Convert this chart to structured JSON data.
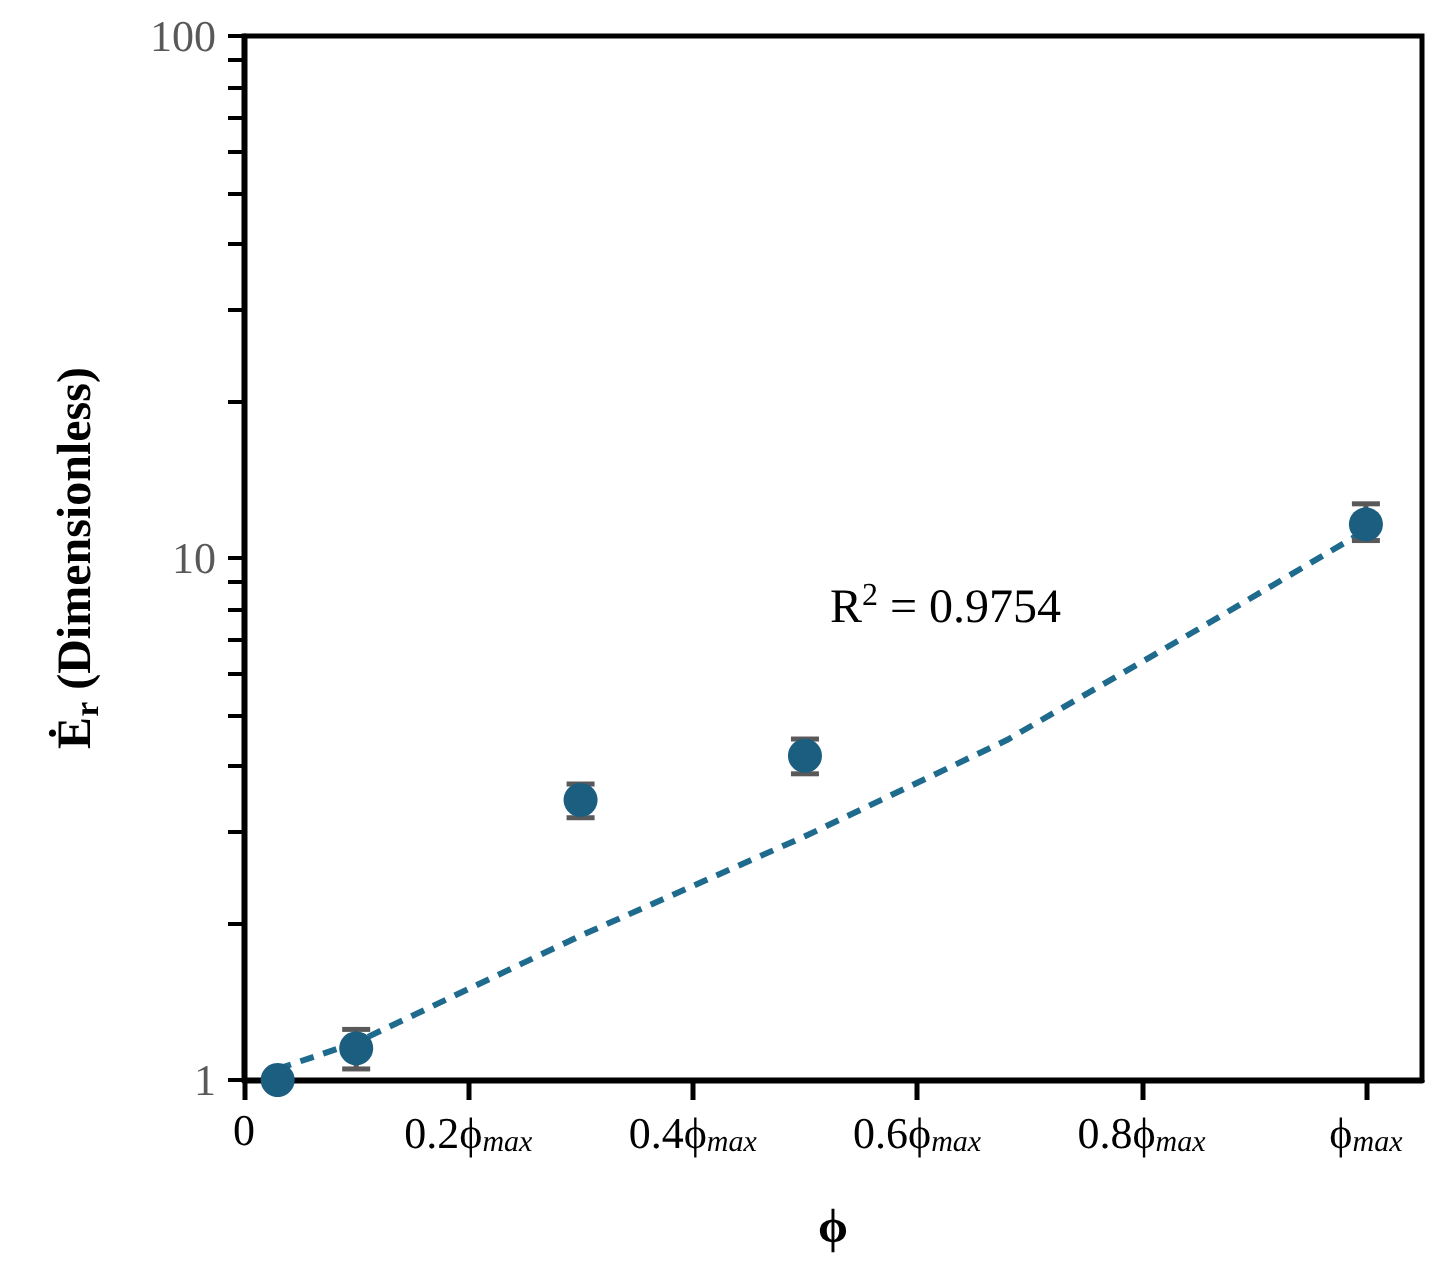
{
  "chart_data": {
    "type": "scatter",
    "xlabel": "ϕ",
    "ylabel": "Ė$_{r}$ (Dimensionless)",
    "annotations": [
      "R$^{2}$ = 0.9754"
    ],
    "series": [
      {
        "color": "#1b5e80",
        "marker": "circle",
        "x": [
          0.03,
          0.1,
          0.3,
          0.5,
          1.0
        ],
        "values": [
          1.0,
          1.15,
          3.44,
          4.18,
          11.6
        ],
        "errors": [
          null,
          [
            1.05,
            1.25
          ],
          [
            3.18,
            3.69
          ],
          [
            3.86,
            4.5
          ],
          [
            10.8,
            12.7
          ]
        ]
      },
      {
        "type": "line",
        "color": "#1f6b8e",
        "marker": "none",
        "line_style": "dashed",
        "x": [
          0.03,
          0.1,
          0.3,
          0.5,
          0.68,
          0.855,
          1.0
        ],
        "values": [
          1.05,
          1.18,
          1.89,
          2.93,
          4.48,
          7.4,
          11.3
        ]
      }
    ],
    "log": "y",
    "grid": false,
    "xlim": [
      0,
      1.05
    ],
    "ylim": [
      1,
      100
    ],
    "xticks": [
      {
        "value": 0,
        "label": "0"
      },
      {
        "value": 0.2,
        "label": "0.2ϕ$_{max}$"
      },
      {
        "value": 0.4,
        "label": "0.4ϕ$_{max}$"
      },
      {
        "value": 0.6,
        "label": "0.6ϕ$_{max}$"
      },
      {
        "value": 0.8,
        "label": "0.8ϕ$_{max}$"
      },
      {
        "value": 1.0,
        "label": "ϕ$_{max}$"
      }
    ],
    "yticks": [
      1,
      {
        "value": 2,
        "label": null
      },
      {
        "value": 3,
        "label": null
      },
      {
        "value": 4,
        "label": null
      },
      {
        "value": 5,
        "label": null
      },
      {
        "value": 6,
        "label": null
      },
      {
        "value": 7,
        "label": null
      },
      {
        "value": 8,
        "label": null
      },
      {
        "value": 9,
        "label": null
      },
      10,
      {
        "value": 20,
        "label": null
      },
      {
        "value": 30,
        "label": null
      },
      {
        "value": 40,
        "label": null
      },
      {
        "value": 50,
        "label": null
      },
      {
        "value": 60,
        "label": null
      },
      {
        "value": 70,
        "label": null
      },
      {
        "value": 80,
        "label": null
      },
      {
        "value": 90,
        "label": null
      },
      100
    ]
  }
}
